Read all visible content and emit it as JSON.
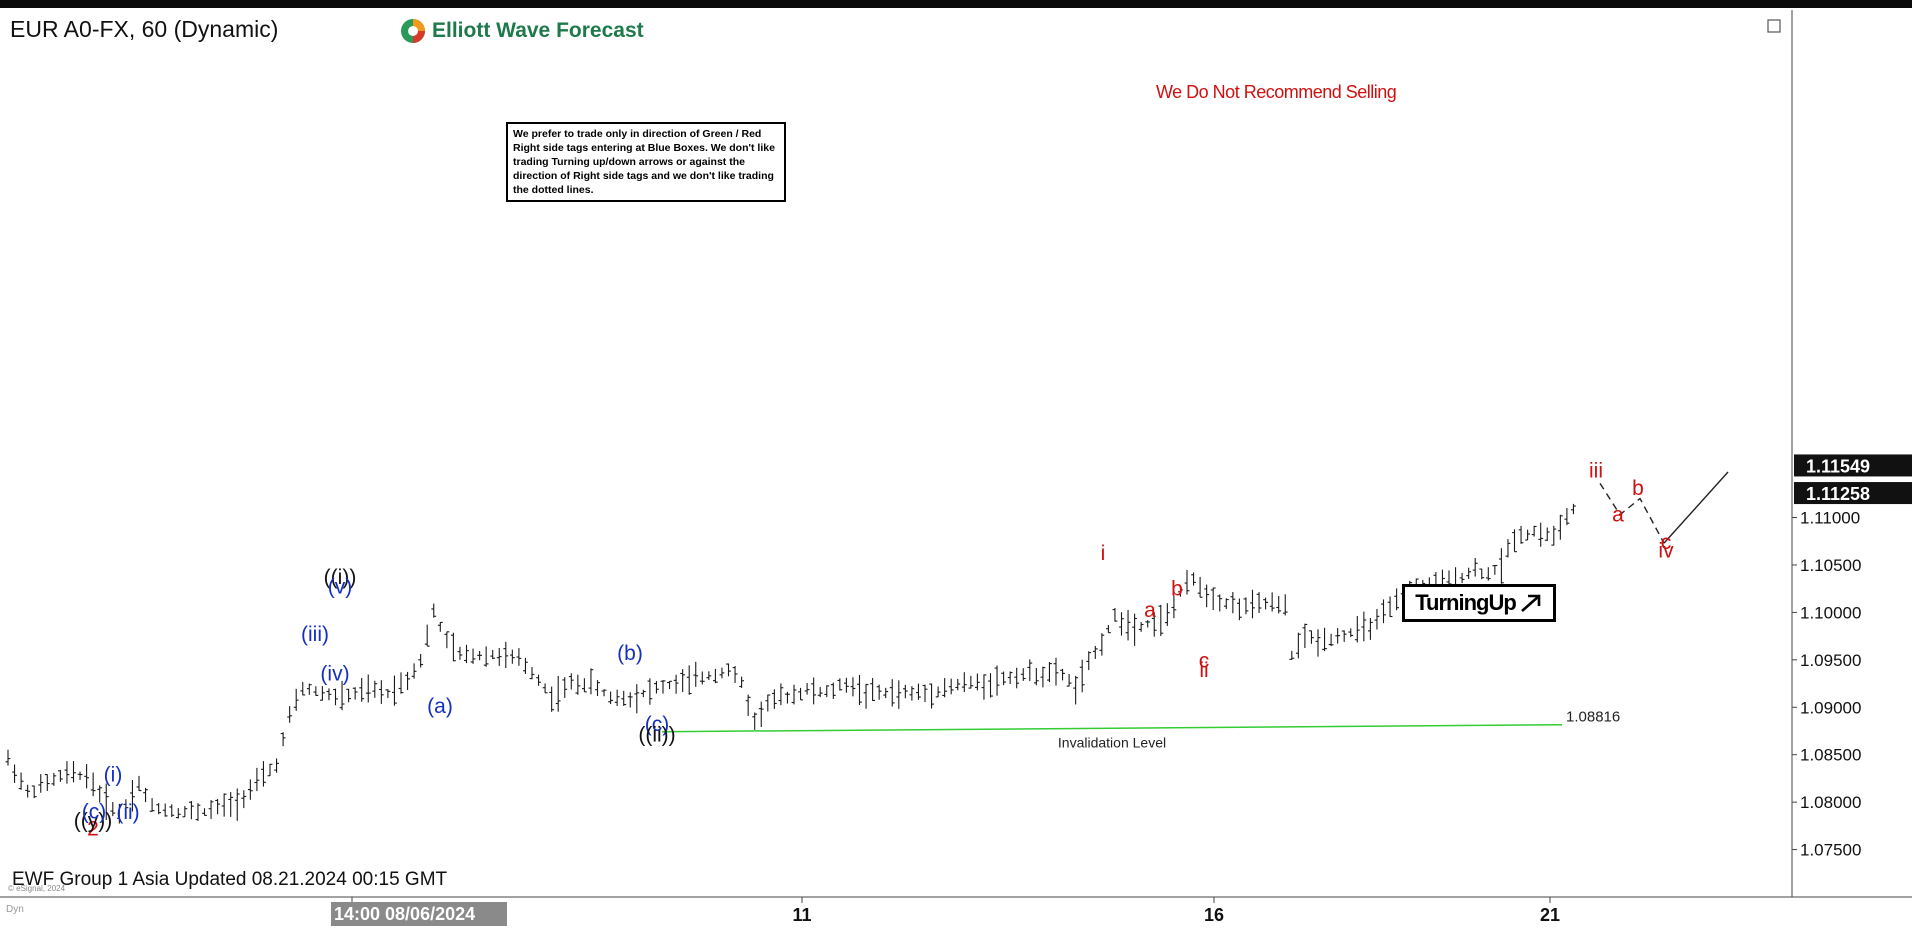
{
  "header": {
    "symbol_title": "EUR A0-FX, 60 (Dynamic)",
    "brand": "Elliott Wave Forecast"
  },
  "notice_text": "We prefer to trade only in direction of Green / Red Right side tags entering at Blue Boxes. We don't like trading Turning up/down arrows or against the direction of Right side tags and we don't like trading the dotted lines.",
  "warning_text": "We Do Not Recommend Selling",
  "turning_badge": "TurningUp",
  "footer": {
    "updated": "EWF Group 1 Asia Updated 08.21.2024 00:15 GMT",
    "copyright": "© eSignal, 2024",
    "dyn": "Dyn"
  },
  "colors": {
    "wave_blue": "#1530c0",
    "wave_red": "#d01010",
    "invalidation_green": "#33cc33",
    "price_bar": "#1a1a1a"
  },
  "chart_data": {
    "type": "ohlc",
    "title": "EUR A0-FX, 60 (Dynamic)",
    "timeframe": "60",
    "ylim": [
      1.072,
      1.16
    ],
    "y_ticks": [
      1.075,
      1.08,
      1.085,
      1.09,
      1.095,
      1.1,
      1.105,
      1.11
    ],
    "price_labels": [
      {
        "value": 1.11549,
        "text": "1.11549"
      },
      {
        "value": 1.11258,
        "text": "1.11258"
      }
    ],
    "x_labels": [
      "14:00 08/06/2024",
      "11",
      "16",
      "21"
    ],
    "x_label_bars": [
      0,
      100,
      164,
      220
    ],
    "bar_count": 240,
    "price_path": [
      [
        0,
        1.0845
      ],
      [
        3,
        1.081
      ],
      [
        6,
        1.082
      ],
      [
        9,
        1.083
      ],
      [
        12,
        1.0828
      ],
      [
        15,
        1.08
      ],
      [
        17,
        1.0788
      ],
      [
        20,
        1.082
      ],
      [
        22,
        1.0795
      ],
      [
        26,
        1.079
      ],
      [
        30,
        1.079
      ],
      [
        35,
        1.08
      ],
      [
        38,
        1.082
      ],
      [
        41,
        1.084
      ],
      [
        43,
        1.089
      ],
      [
        45,
        1.092
      ],
      [
        48,
        1.0915
      ],
      [
        51,
        1.091
      ],
      [
        55,
        1.0918
      ],
      [
        58,
        1.0915
      ],
      [
        61,
        1.093
      ],
      [
        63,
        1.095
      ],
      [
        65,
        1.1
      ],
      [
        67,
        1.097
      ],
      [
        69,
        1.0955
      ],
      [
        72,
        1.0955
      ],
      [
        75,
        1.0955
      ],
      [
        78,
        1.095
      ],
      [
        81,
        1.093
      ],
      [
        83,
        1.091
      ],
      [
        86,
        1.0925
      ],
      [
        89,
        1.0925
      ],
      [
        92,
        1.091
      ],
      [
        95,
        1.091
      ],
      [
        99,
        1.092
      ],
      [
        102,
        1.0925
      ],
      [
        105,
        1.093
      ],
      [
        108,
        1.0935
      ],
      [
        110,
        1.094
      ],
      [
        112,
        1.0925
      ],
      [
        114,
        1.0885
      ],
      [
        116,
        1.0905
      ],
      [
        119,
        1.0912
      ],
      [
        122,
        1.0918
      ],
      [
        125,
        1.0915
      ],
      [
        128,
        1.0925
      ],
      [
        131,
        1.0915
      ],
      [
        134,
        1.0915
      ],
      [
        137,
        1.0915
      ],
      [
        140,
        1.0915
      ],
      [
        143,
        1.092
      ],
      [
        146,
        1.0925
      ],
      [
        149,
        1.0925
      ],
      [
        152,
        1.093
      ],
      [
        155,
        1.0935
      ],
      [
        158,
        1.0935
      ],
      [
        161,
        1.0935
      ],
      [
        163,
        1.092
      ],
      [
        165,
        1.0945
      ],
      [
        167,
        1.097
      ],
      [
        169,
        1.0995
      ],
      [
        172,
        1.0985
      ],
      [
        175,
        1.099
      ],
      [
        177,
        1.0995
      ],
      [
        179,
        1.102
      ],
      [
        181,
        1.1035
      ],
      [
        183,
        1.102
      ],
      [
        186,
        1.101
      ],
      [
        189,
        1.1005
      ],
      [
        192,
        1.101
      ],
      [
        195,
        1.1005
      ],
      [
        196,
        1.0955
      ],
      [
        198,
        1.0975
      ],
      [
        200,
        1.097
      ],
      [
        203,
        1.0975
      ],
      [
        206,
        1.098
      ],
      [
        209,
        1.099
      ],
      [
        212,
        1.101
      ],
      [
        215,
        1.1025
      ],
      [
        218,
        1.103
      ],
      [
        221,
        1.1035
      ],
      [
        224,
        1.1045
      ],
      [
        226,
        1.104
      ],
      [
        228,
        1.105
      ],
      [
        230,
        1.108
      ],
      [
        233,
        1.1085
      ],
      [
        236,
        1.108
      ],
      [
        238,
        1.11
      ],
      [
        240,
        1.1118
      ],
      [
        242,
        1.113
      ]
    ],
    "projection": {
      "style": "dashed",
      "points": [
        [
          1600,
          1.1136
        ],
        [
          1620,
          1.1103
        ],
        [
          1640,
          1.112
        ],
        [
          1664,
          1.1073
        ]
      ]
    },
    "projection_continuation": [
      [
        1664,
        1.1073
      ],
      [
        1728,
        1.1148
      ]
    ],
    "invalidation": {
      "value": 1.08816,
      "label": "Invalidation Level",
      "text": "1.08816"
    },
    "wave_labels": [
      {
        "text": "2",
        "color": "red",
        "x": 93,
        "price": 1.0765
      },
      {
        "text": "((y))",
        "color": "black",
        "x": 93,
        "price": 1.0773
      },
      {
        "text": "(c)",
        "color": "blue",
        "x": 94,
        "price": 1.0783
      },
      {
        "text": "(i)",
        "color": "blue",
        "x": 113,
        "price": 1.0822
      },
      {
        "text": "(ii)",
        "color": "blue",
        "x": 128,
        "price": 1.0782
      },
      {
        "text": "((i))",
        "color": "black",
        "x": 340,
        "price": 1.103
      },
      {
        "text": "(v)",
        "color": "blue",
        "x": 340,
        "price": 1.102
      },
      {
        "text": "(iii)",
        "color": "blue",
        "x": 315,
        "price": 1.097
      },
      {
        "text": "(iv)",
        "color": "blue",
        "x": 335,
        "price": 1.0928
      },
      {
        "text": "(a)",
        "color": "blue",
        "x": 440,
        "price": 1.0894
      },
      {
        "text": "(b)",
        "color": "blue",
        "x": 630,
        "price": 1.095
      },
      {
        "text": "(c)",
        "color": "blue",
        "x": 657,
        "price": 1.0875
      },
      {
        "text": "((ii))",
        "color": "black",
        "x": 657,
        "price": 1.0864
      },
      {
        "text": "i",
        "color": "red",
        "x": 1103,
        "price": 1.1055
      },
      {
        "text": "a",
        "color": "red",
        "x": 1150,
        "price": 1.0995
      },
      {
        "text": "b",
        "color": "red",
        "x": 1177,
        "price": 1.1018
      },
      {
        "text": "c",
        "color": "red",
        "x": 1204,
        "price": 1.0942
      },
      {
        "text": "ii",
        "color": "red",
        "x": 1204,
        "price": 1.0932
      },
      {
        "text": "iii",
        "color": "red",
        "x": 1596,
        "price": 1.1142
      },
      {
        "text": "a",
        "color": "red",
        "x": 1618,
        "price": 1.1096
      },
      {
        "text": "b",
        "color": "red",
        "x": 1638,
        "price": 1.1124
      },
      {
        "text": "c",
        "color": "red",
        "x": 1666,
        "price": 1.1067
      },
      {
        "text": "iv",
        "color": "red",
        "x": 1666,
        "price": 1.1058
      }
    ]
  }
}
